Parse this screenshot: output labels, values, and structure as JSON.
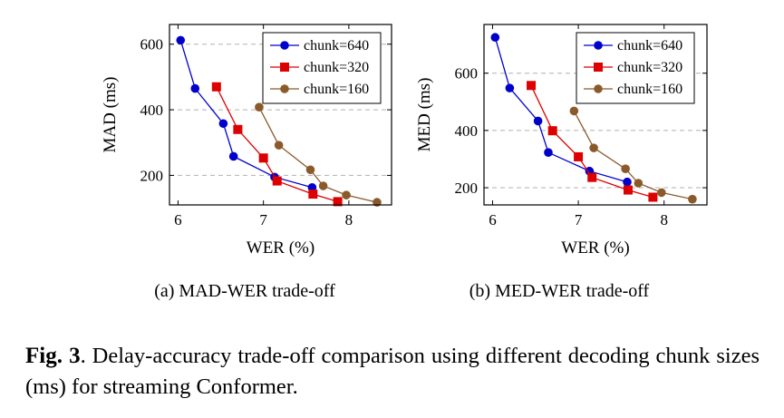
{
  "chart_data": [
    {
      "type": "line",
      "xlabel": "WER (%)",
      "ylabel": "MAD (ms)",
      "xlim": [
        5.9,
        8.5
      ],
      "ylim": [
        110,
        660
      ],
      "xticks": [
        6,
        7,
        8
      ],
      "yticks": [
        200,
        400,
        600
      ],
      "grid": "horizontal dashed",
      "legend": "top-right",
      "subcaption": "(a)  MAD-WER trade-off",
      "series": [
        {
          "name": "chunk=640",
          "color": "#0000cc",
          "marker": "circle",
          "points": [
            [
              6.03,
              612
            ],
            [
              6.2,
              465
            ],
            [
              6.53,
              358
            ],
            [
              6.65,
              258
            ],
            [
              7.13,
              195
            ],
            [
              7.57,
              163
            ]
          ]
        },
        {
          "name": "chunk=320",
          "color": "#dd0000",
          "marker": "square",
          "points": [
            [
              6.45,
              470
            ],
            [
              6.7,
              340
            ],
            [
              7.0,
              253
            ],
            [
              7.16,
              183
            ],
            [
              7.58,
              143
            ],
            [
              7.87,
              120
            ]
          ]
        },
        {
          "name": "chunk=160",
          "color": "#8b5a2b",
          "marker": "circle",
          "points": [
            [
              6.95,
              408
            ],
            [
              7.18,
              292
            ],
            [
              7.55,
              217
            ],
            [
              7.7,
              168
            ],
            [
              7.97,
              140
            ],
            [
              8.33,
              118
            ]
          ]
        }
      ]
    },
    {
      "type": "line",
      "xlabel": "WER (%)",
      "ylabel": "MED (ms)",
      "xlim": [
        5.9,
        8.5
      ],
      "ylim": [
        140,
        770
      ],
      "xticks": [
        6,
        7,
        8
      ],
      "yticks": [
        200,
        400,
        600
      ],
      "grid": "horizontal dashed",
      "legend": "top-right",
      "subcaption": "(b)  MED-WER trade-off",
      "series": [
        {
          "name": "chunk=640",
          "color": "#0000cc",
          "marker": "circle",
          "points": [
            [
              6.03,
              725
            ],
            [
              6.2,
              548
            ],
            [
              6.53,
              433
            ],
            [
              6.65,
              323
            ],
            [
              7.13,
              258
            ],
            [
              7.57,
              220
            ]
          ]
        },
        {
          "name": "chunk=320",
          "color": "#dd0000",
          "marker": "square",
          "points": [
            [
              6.45,
              557
            ],
            [
              6.7,
              399
            ],
            [
              7.0,
              308
            ],
            [
              7.16,
              236
            ],
            [
              7.58,
              192
            ],
            [
              7.87,
              167
            ]
          ]
        },
        {
          "name": "chunk=160",
          "color": "#8b5a2b",
          "marker": "circle",
          "points": [
            [
              6.95,
              468
            ],
            [
              7.18,
              339
            ],
            [
              7.55,
              266
            ],
            [
              7.7,
              216
            ],
            [
              7.97,
              183
            ],
            [
              8.33,
              160
            ]
          ]
        }
      ]
    }
  ],
  "caption": {
    "label": "Fig. 3",
    "text": ". Delay-accuracy trade-off comparison using different decoding chunk sizes (ms) for streaming Conformer."
  }
}
